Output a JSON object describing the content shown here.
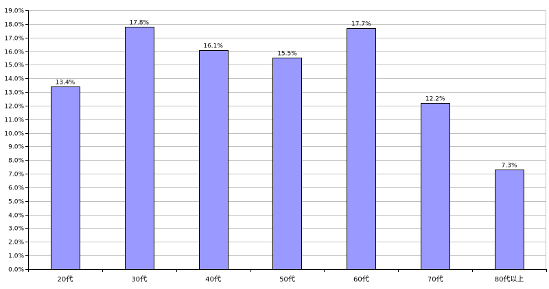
{
  "chart_data": {
    "type": "bar",
    "categories": [
      "20代",
      "30代",
      "40代",
      "50代",
      "60代",
      "70代",
      "80代以上"
    ],
    "values": [
      13.4,
      17.8,
      16.1,
      15.5,
      17.7,
      12.2,
      7.3
    ],
    "data_labels": [
      "13.4%",
      "17.8%",
      "16.1%",
      "15.5%",
      "17.7%",
      "12.2%",
      "7.3%"
    ],
    "title": "",
    "xlabel": "",
    "ylabel": "",
    "ylim": [
      0,
      19
    ],
    "ytick_step": 1,
    "ytick_format": "percent_one_decimal",
    "grid": "horizontal",
    "legend": "none",
    "bar_color": "#9999FF",
    "bar_edge_color": "#000000",
    "grid_color": "#C0C0C0"
  }
}
